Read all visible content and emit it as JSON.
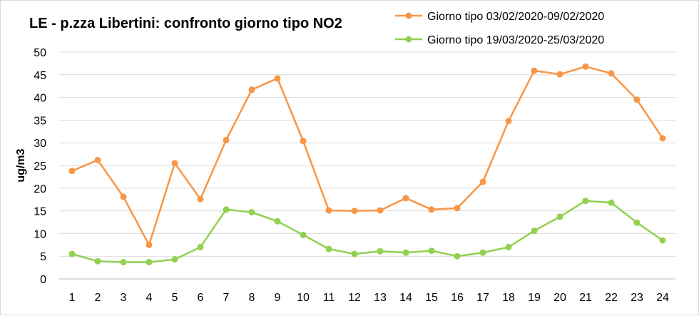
{
  "chart_data": {
    "type": "line",
    "title": "LE - p.zza Libertini: confronto giorno tipo NO2",
    "xlabel": "",
    "ylabel": "ug/m3",
    "ylim": [
      0,
      50
    ],
    "yticks": [
      "0",
      "5",
      "10",
      "15",
      "20",
      "25",
      "30",
      "35",
      "40",
      "45",
      "50"
    ],
    "grid": true,
    "legend_position": "top-right",
    "categories": [
      "1",
      "2",
      "3",
      "4",
      "5",
      "6",
      "7",
      "8",
      "9",
      "10",
      "11",
      "12",
      "13",
      "14",
      "15",
      "16",
      "17",
      "18",
      "19",
      "20",
      "21",
      "22",
      "23",
      "24"
    ],
    "series": [
      {
        "name": "Giorno tipo 03/02/2020-09/02/2020",
        "color": "#F79646",
        "values": [
          23.8,
          26.2,
          18.1,
          7.5,
          25.5,
          17.6,
          30.6,
          41.7,
          44.2,
          30.4,
          15.1,
          15.0,
          15.1,
          17.8,
          15.3,
          15.6,
          21.4,
          34.8,
          45.9,
          45.1,
          46.8,
          45.3,
          39.5,
          31.0
        ]
      },
      {
        "name": "Giorno tipo 19/03/2020-25/03/2020",
        "color": "#92D050",
        "values": [
          5.5,
          3.9,
          3.7,
          3.7,
          4.3,
          7.0,
          15.3,
          14.7,
          12.7,
          9.7,
          6.6,
          5.5,
          6.1,
          5.8,
          6.2,
          5.0,
          5.8,
          7.0,
          10.6,
          13.7,
          17.2,
          16.8,
          12.4,
          8.5
        ]
      }
    ]
  }
}
